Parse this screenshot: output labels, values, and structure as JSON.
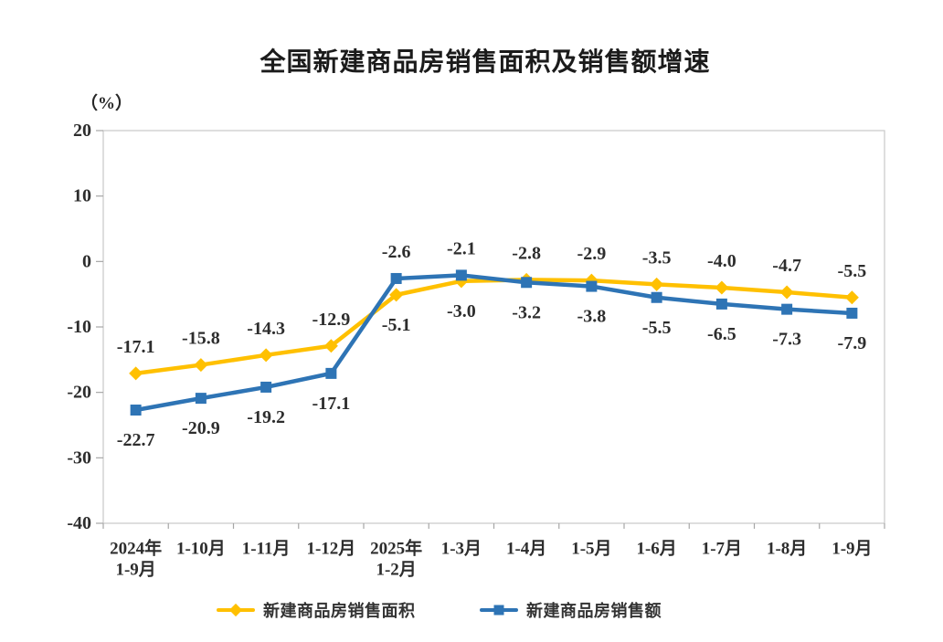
{
  "chart_data": {
    "type": "line",
    "title": "全国新建商品房销售面积及销售额增速",
    "unit_label": "（%）",
    "categories": [
      "2024年\n1-9月",
      "1-10月",
      "1-11月",
      "1-12月",
      "2025年\n1-2月",
      "1-3月",
      "1-4月",
      "1-5月",
      "1-6月",
      "1-7月",
      "1-8月",
      "1-9月"
    ],
    "series": [
      {
        "key": "sales-area",
        "name": "新建商品房销售面积",
        "marker": "diamond",
        "color": "#FFC000",
        "values": [
          -17.1,
          -15.8,
          -14.3,
          -12.9,
          -5.1,
          -3.0,
          -2.8,
          -2.9,
          -3.5,
          -4.0,
          -4.7,
          -5.5
        ]
      },
      {
        "key": "sales-amount",
        "name": "新建商品房销售额",
        "marker": "square",
        "color": "#2E74B5",
        "values": [
          -22.7,
          -20.9,
          -19.2,
          -17.1,
          -2.6,
          -2.1,
          -3.2,
          -3.8,
          -5.5,
          -6.5,
          -7.3,
          -7.9
        ]
      }
    ],
    "ylim": [
      -40,
      20
    ],
    "yticks": [
      20,
      10,
      0,
      -10,
      -20,
      -30,
      -40
    ],
    "grid": false,
    "data_labels": true,
    "legend_position": "bottom",
    "axis_color": "#c9c9c9",
    "tick_color": "#a6a6a6",
    "text_color": "#2d2d2d"
  }
}
